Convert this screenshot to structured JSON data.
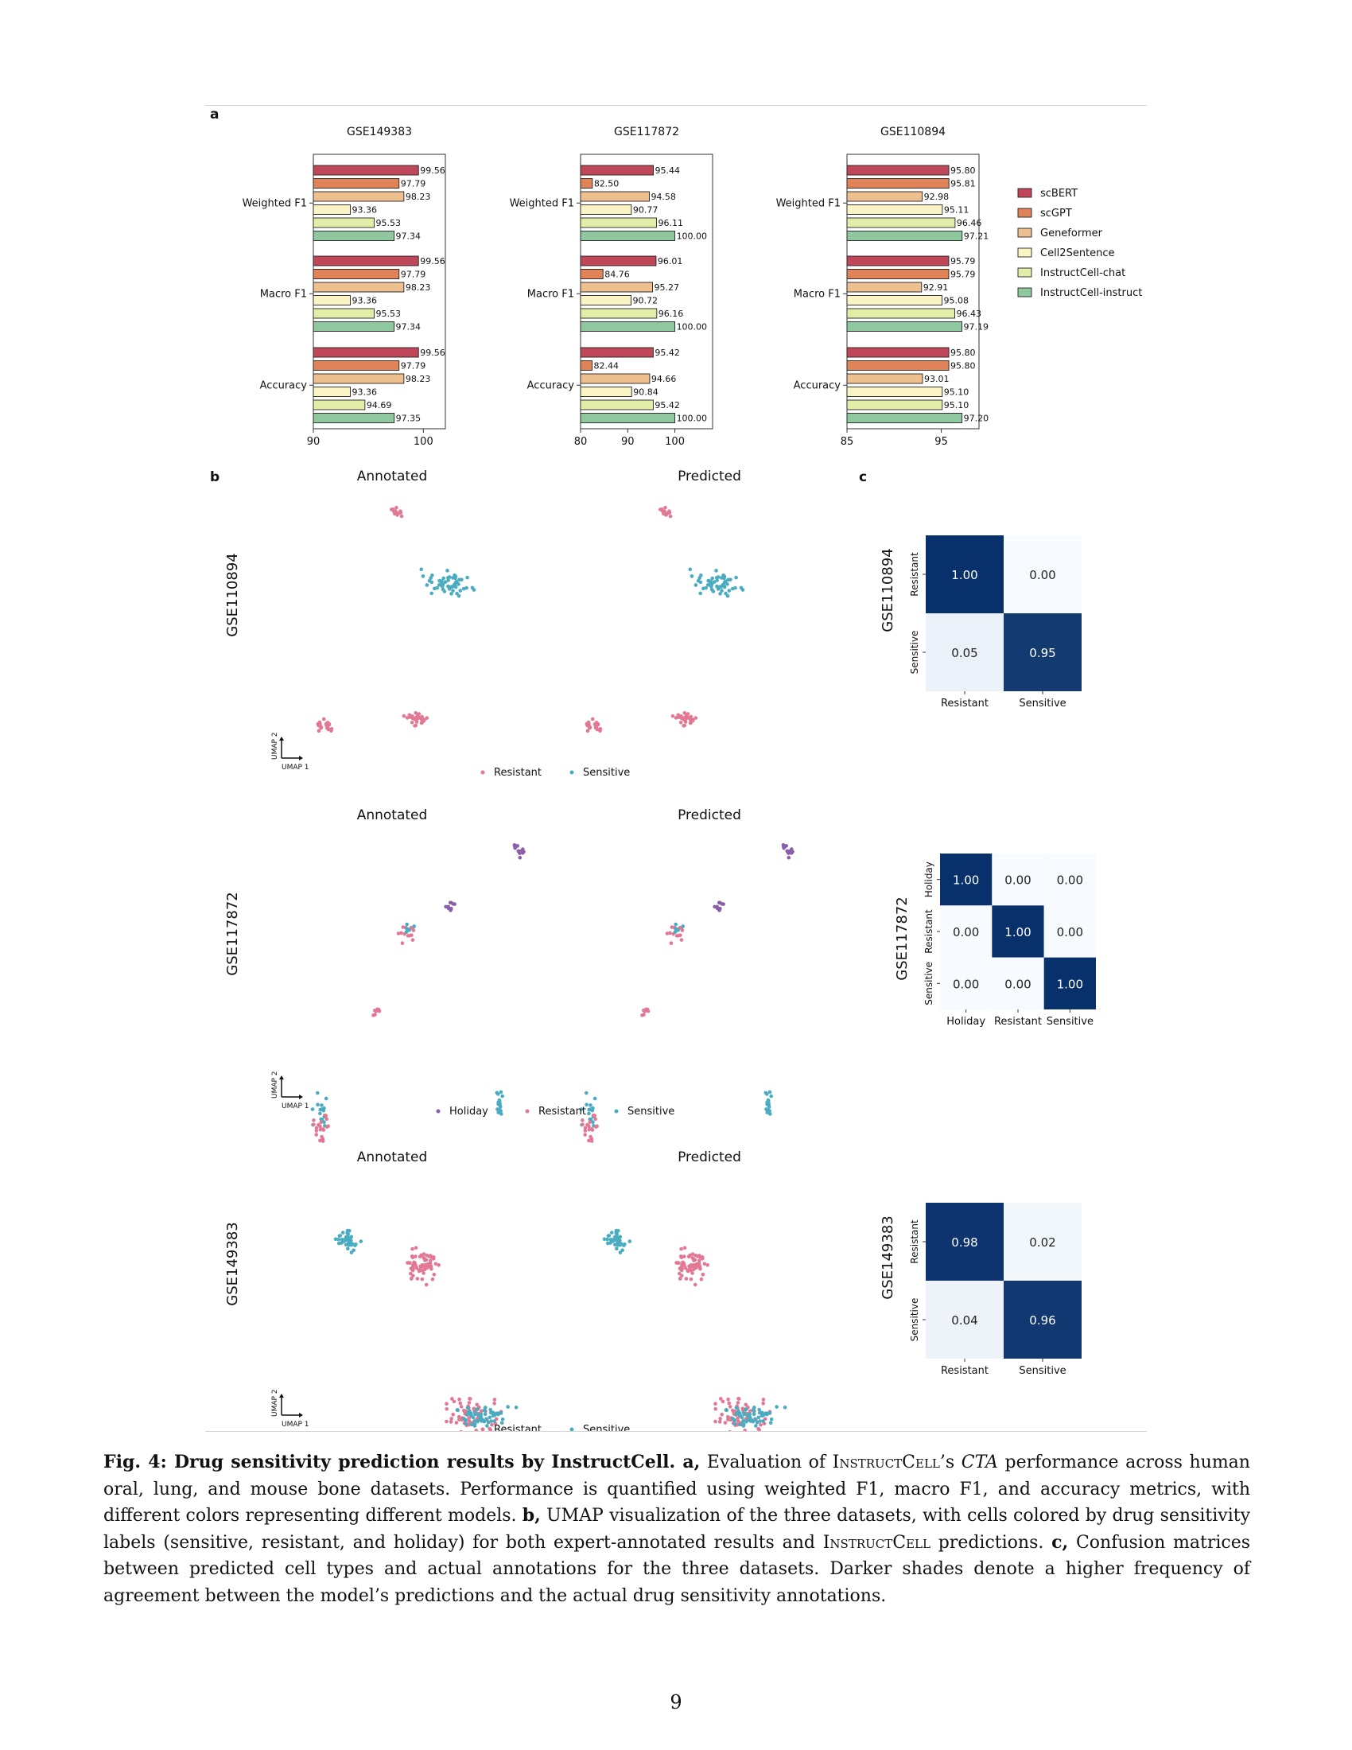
{
  "figure": {
    "panel_a_label": "a",
    "panel_b_label": "b",
    "panel_c_label": "c",
    "umap_axis_x": "UMAP 1",
    "umap_axis_y": "UMAP 2",
    "annotated_title": "Annotated",
    "predicted_title": "Predicted"
  },
  "colors": {
    "scBERT": "#c0465a",
    "scGPT": "#e08359",
    "Geneformer": "#efc08f",
    "Cell2Sentence": "#faf4c4",
    "InstructCell-chat": "#e2eea8",
    "InstructCell-instruct": "#8fc79f",
    "Resistant": "#e27893",
    "Sensitive": "#4aacc0",
    "Holiday": "#8a5fa7"
  },
  "chart_data": [
    {
      "type": "bar",
      "orientation": "horizontal",
      "title": "GSE149383",
      "categories": [
        "Weighted F1",
        "Macro F1",
        "Accuracy"
      ],
      "xlim": [
        90,
        102
      ],
      "xticks": [
        90,
        100
      ],
      "series": [
        {
          "name": "scBERT",
          "values": [
            99.56,
            99.56,
            99.56
          ]
        },
        {
          "name": "scGPT",
          "values": [
            97.79,
            97.79,
            97.79
          ]
        },
        {
          "name": "Geneformer",
          "values": [
            98.23,
            98.23,
            98.23
          ]
        },
        {
          "name": "Cell2Sentence",
          "values": [
            93.36,
            93.36,
            93.36
          ]
        },
        {
          "name": "InstructCell-chat",
          "values": [
            95.53,
            95.53,
            94.69
          ]
        },
        {
          "name": "InstructCell-instruct",
          "values": [
            97.34,
            97.34,
            97.35
          ]
        }
      ],
      "value_labels": [
        [
          "99.56",
          "97.79",
          "98.23",
          "93.36",
          "95.53",
          "97.34"
        ],
        [
          "99.56",
          "97.79",
          "98.23",
          "93.36",
          "95.53",
          "97.34"
        ],
        [
          "99.56",
          "97.79",
          "98.23",
          "93.36",
          "94.69",
          "97.35"
        ]
      ]
    },
    {
      "type": "bar",
      "orientation": "horizontal",
      "title": "GSE117872",
      "categories": [
        "Weighted F1",
        "Macro F1",
        "Accuracy"
      ],
      "xlim": [
        80,
        108
      ],
      "xticks": [
        80,
        90,
        100
      ],
      "series": [
        {
          "name": "scBERT",
          "values": [
            95.44,
            96.01,
            95.42
          ]
        },
        {
          "name": "scGPT",
          "values": [
            82.5,
            84.76,
            82.44
          ]
        },
        {
          "name": "Geneformer",
          "values": [
            94.58,
            95.27,
            94.66
          ]
        },
        {
          "name": "Cell2Sentence",
          "values": [
            90.77,
            90.72,
            90.84
          ]
        },
        {
          "name": "InstructCell-chat",
          "values": [
            96.11,
            96.16,
            95.42
          ]
        },
        {
          "name": "InstructCell-instruct",
          "values": [
            100,
            100,
            100
          ]
        }
      ],
      "value_labels": [
        [
          "95.44",
          "82.50",
          "94.58",
          "90.77",
          "96.11",
          "100.00"
        ],
        [
          "96.01",
          "84.76",
          "95.27",
          "90.72",
          "96.16",
          "100.00"
        ],
        [
          "95.42",
          "82.44",
          "94.66",
          "90.84",
          "95.42",
          "100.00"
        ]
      ]
    },
    {
      "type": "bar",
      "orientation": "horizontal",
      "title": "GSE110894",
      "categories": [
        "Weighted F1",
        "Macro F1",
        "Accuracy"
      ],
      "xlim": [
        85,
        99
      ],
      "xticks": [
        85,
        95
      ],
      "series": [
        {
          "name": "scBERT",
          "values": [
            95.8,
            95.79,
            95.8
          ]
        },
        {
          "name": "scGPT",
          "values": [
            95.81,
            95.79,
            95.8
          ]
        },
        {
          "name": "Geneformer",
          "values": [
            92.98,
            92.91,
            93.01
          ]
        },
        {
          "name": "Cell2Sentence",
          "values": [
            95.11,
            95.08,
            95.1
          ]
        },
        {
          "name": "InstructCell-chat",
          "values": [
            96.46,
            96.43,
            95.1
          ]
        },
        {
          "name": "InstructCell-instruct",
          "values": [
            97.21,
            97.19,
            97.2
          ]
        }
      ],
      "value_labels": [
        [
          "95.80",
          "95.81",
          "92.98",
          "95.11",
          "96.46",
          "97.21"
        ],
        [
          "95.79",
          "95.79",
          "92.91",
          "95.08",
          "96.43",
          "97.19"
        ],
        [
          "95.80",
          "95.80",
          "93.01",
          "95.10",
          "95.10",
          "97.20"
        ]
      ]
    },
    {
      "type": "heatmap",
      "dataset_label": "GSE110894",
      "labels": [
        "Resistant",
        "Sensitive"
      ],
      "values": [
        [
          1.0,
          0.0
        ],
        [
          0.05,
          0.95
        ]
      ],
      "cell_text": [
        [
          "1.00",
          "0.00"
        ],
        [
          "0.05",
          "0.95"
        ]
      ]
    },
    {
      "type": "heatmap",
      "dataset_label": "GSE117872",
      "labels": [
        "Holiday",
        "Resistant",
        "Sensitive"
      ],
      "values": [
        [
          1.0,
          0.0,
          0.0
        ],
        [
          0.0,
          1.0,
          0.0
        ],
        [
          0.0,
          0.0,
          1.0
        ]
      ],
      "cell_text": [
        [
          "1.00",
          "0.00",
          "0.00"
        ],
        [
          "0.00",
          "1.00",
          "0.00"
        ],
        [
          "0.00",
          "0.00",
          "1.00"
        ]
      ]
    },
    {
      "type": "heatmap",
      "dataset_label": "GSE149383",
      "labels": [
        "Resistant",
        "Sensitive"
      ],
      "values": [
        [
          0.98,
          0.02
        ],
        [
          0.04,
          0.96
        ]
      ],
      "cell_text": [
        [
          "0.98",
          "0.02"
        ],
        [
          "0.04",
          "0.96"
        ]
      ]
    }
  ],
  "umap_panels": [
    {
      "dataset_label": "GSE110894",
      "legend": [
        "Resistant",
        "Sensitive"
      ]
    },
    {
      "dataset_label": "GSE117872",
      "legend": [
        "Holiday",
        "Resistant",
        "Sensitive"
      ]
    },
    {
      "dataset_label": "GSE149383",
      "legend": [
        "Resistant",
        "Sensitive"
      ]
    }
  ],
  "caption": {
    "fig_label": "Fig. 4:",
    "fig_title": "Drug sensitivity prediction results by InstructCell.",
    "part_a_label": "a,",
    "part_a_text_1": "Evaluation of",
    "model_name": "InstructCell",
    "part_a_text_2": "’s",
    "cta_term": "CTA",
    "part_a_text_3": "performance across human oral, lung, and mouse bone datasets. Performance is quantified using weighted F1, macro F1, and accuracy metrics, with different colors representing different models.",
    "part_b_label": "b,",
    "part_b_text_1": "UMAP visualization of the three datasets, with cells colored by drug sensitivity labels (sensitive, resistant, and holiday) for both expert-annotated results and",
    "part_b_text_2": "predictions.",
    "part_c_label": "c,",
    "part_c_text": "Confusion matrices between predicted cell types and actual annotations for the three datasets. Darker shades denote a higher frequency of agreement between the model’s predictions and the actual drug sensitivity annotations."
  },
  "page_number": "9"
}
